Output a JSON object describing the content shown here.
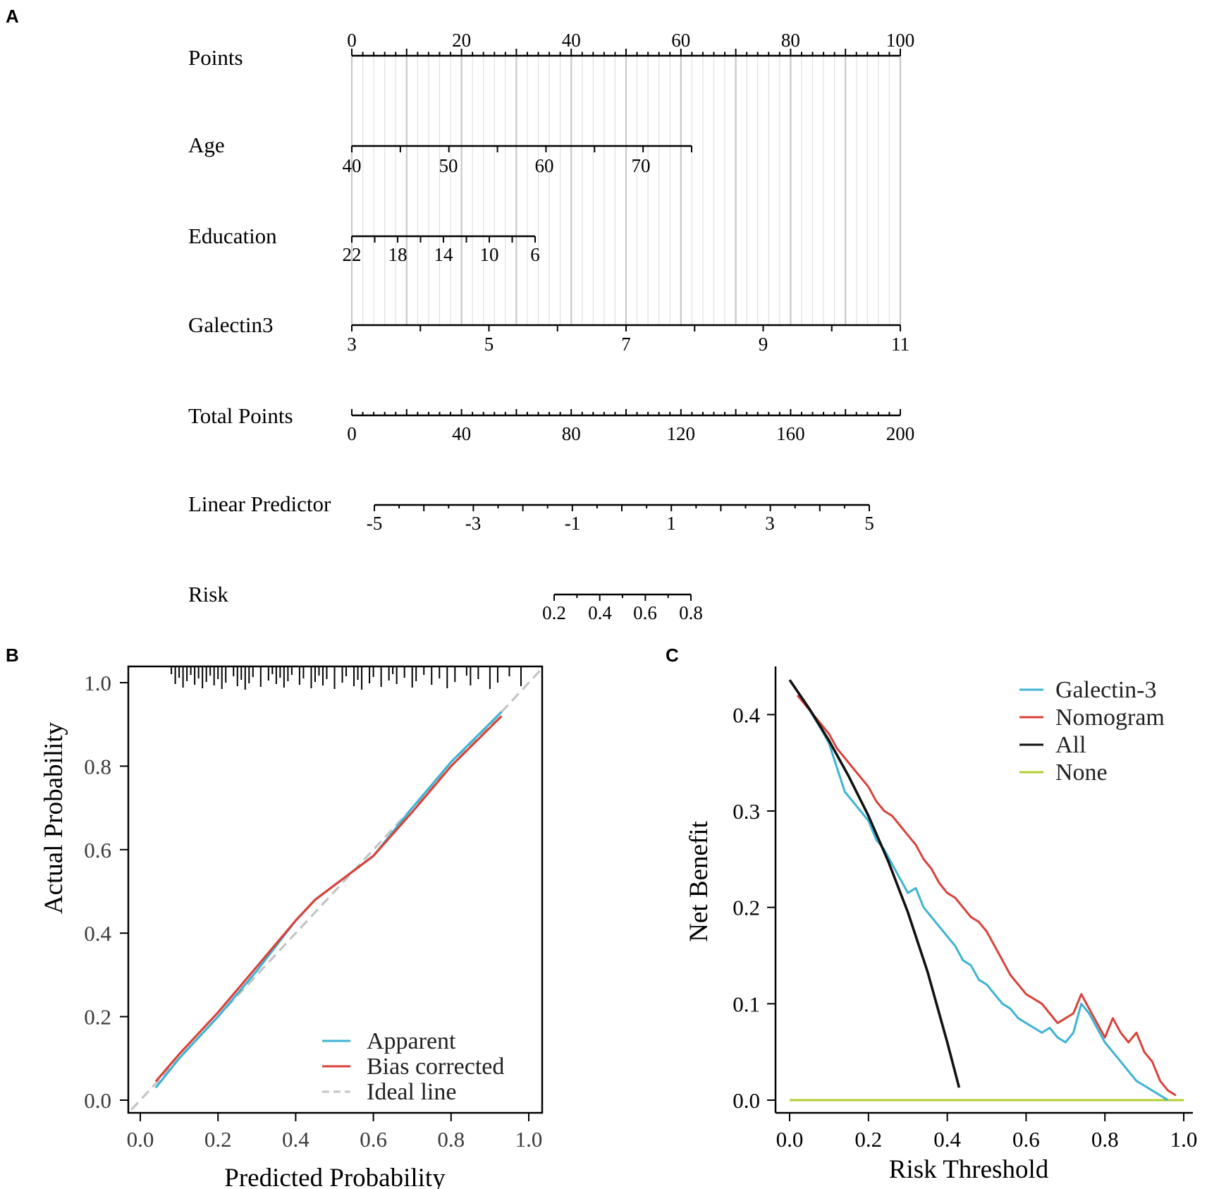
{
  "panels": {
    "a": "A",
    "b": "B",
    "c": "C"
  },
  "nomogram": {
    "points": {
      "label": "Points",
      "ticks": [
        "0",
        "20",
        "40",
        "60",
        "80",
        "100"
      ]
    },
    "age": {
      "label": "Age",
      "ticks": [
        "40",
        "50",
        "60",
        "70"
      ]
    },
    "education": {
      "label": "Education",
      "ticks": [
        "22",
        "18",
        "14",
        "10",
        "6"
      ]
    },
    "galectin3": {
      "label": "Galectin3",
      "ticks": [
        "3",
        "5",
        "7",
        "9",
        "11"
      ]
    },
    "total_points": {
      "label": "Total Points",
      "ticks": [
        "0",
        "40",
        "80",
        "120",
        "160",
        "200"
      ]
    },
    "linear_predictor": {
      "label": "Linear Predictor",
      "ticks": [
        "-5",
        "-3",
        "-1",
        "1",
        "3",
        "5"
      ]
    },
    "risk": {
      "label": "Risk",
      "ticks": [
        "0.2",
        "0.4",
        "0.6",
        "0.8"
      ]
    }
  },
  "chart_data": [
    {
      "panel": "A",
      "type": "nomogram",
      "scales": [
        {
          "name": "Points",
          "ticks": [
            0,
            20,
            40,
            60,
            80,
            100
          ],
          "points_range": [
            0,
            100
          ]
        },
        {
          "name": "Age",
          "ticks": [
            40,
            50,
            60,
            70
          ],
          "value_range": [
            40,
            75.5
          ],
          "points_range": [
            0,
            62
          ]
        },
        {
          "name": "Education",
          "ticks": [
            22,
            18,
            14,
            10,
            6
          ],
          "value_range": [
            22,
            6
          ],
          "points_range": [
            0,
            33.5
          ]
        },
        {
          "name": "Galectin3",
          "ticks": [
            3,
            5,
            7,
            9,
            11
          ],
          "value_range": [
            3,
            11
          ],
          "points_range": [
            0,
            100
          ]
        },
        {
          "name": "Total Points",
          "ticks": [
            0,
            40,
            80,
            120,
            160,
            200
          ],
          "range": [
            0,
            200
          ]
        },
        {
          "name": "Linear Predictor",
          "ticks": [
            -5,
            -3,
            -1,
            1,
            3,
            5
          ],
          "range": [
            -5,
            5
          ]
        },
        {
          "name": "Risk",
          "ticks": [
            0.2,
            0.4,
            0.6,
            0.8
          ],
          "range": [
            0.2,
            0.8
          ]
        }
      ]
    },
    {
      "panel": "B",
      "type": "line",
      "title": "",
      "xlabel": "Predicted Probability",
      "ylabel": "Actual Probability",
      "xlim": [
        0,
        1
      ],
      "ylim": [
        0,
        1
      ],
      "xticks": [
        "0.0",
        "0.2",
        "0.4",
        "0.6",
        "0.8",
        "1.0"
      ],
      "yticks": [
        "0.0",
        "0.2",
        "0.4",
        "0.6",
        "0.8",
        "1.0"
      ],
      "legend_position": "bottom-right",
      "series": [
        {
          "name": "Apparent",
          "color": "#3eb3d1",
          "style": "solid",
          "x": [
            0.04,
            0.1,
            0.2,
            0.3,
            0.4,
            0.45,
            0.5,
            0.55,
            0.6,
            0.7,
            0.8,
            0.93
          ],
          "y": [
            0.03,
            0.1,
            0.2,
            0.31,
            0.43,
            0.48,
            0.515,
            0.55,
            0.585,
            0.7,
            0.81,
            0.93
          ]
        },
        {
          "name": "Bias corrected",
          "color": "#d9413a",
          "style": "solid",
          "x": [
            0.04,
            0.1,
            0.2,
            0.3,
            0.4,
            0.45,
            0.5,
            0.55,
            0.6,
            0.7,
            0.8,
            0.93
          ],
          "y": [
            0.045,
            0.11,
            0.21,
            0.32,
            0.43,
            0.48,
            0.515,
            0.55,
            0.585,
            0.69,
            0.8,
            0.92
          ]
        },
        {
          "name": "Ideal line",
          "color": "#c4c4c4",
          "style": "dashed",
          "x": [
            0,
            1
          ],
          "y": [
            0,
            1
          ]
        }
      ],
      "rug": [
        0.08,
        0.09,
        0.1,
        0.11,
        0.12,
        0.13,
        0.14,
        0.15,
        0.16,
        0.17,
        0.18,
        0.19,
        0.2,
        0.21,
        0.22,
        0.24,
        0.25,
        0.26,
        0.27,
        0.28,
        0.29,
        0.31,
        0.33,
        0.34,
        0.35,
        0.36,
        0.37,
        0.38,
        0.39,
        0.41,
        0.42,
        0.44,
        0.45,
        0.46,
        0.47,
        0.48,
        0.5,
        0.52,
        0.53,
        0.55,
        0.56,
        0.57,
        0.59,
        0.6,
        0.62,
        0.64,
        0.65,
        0.66,
        0.68,
        0.7,
        0.71,
        0.73,
        0.75,
        0.77,
        0.79,
        0.81,
        0.84,
        0.85,
        0.87,
        0.9,
        0.92,
        0.95,
        0.98
      ]
    },
    {
      "panel": "C",
      "type": "line",
      "title": "",
      "xlabel": "Risk Threshold",
      "ylabel": "Net Benefit",
      "xlim": [
        0,
        1
      ],
      "ylim": [
        0,
        0.45
      ],
      "xticks": [
        "0.0",
        "0.2",
        "0.4",
        "0.6",
        "0.8",
        "1.0"
      ],
      "yticks": [
        "0.0",
        "0.1",
        "0.2",
        "0.3",
        "0.4"
      ],
      "legend_position": "top-right",
      "series": [
        {
          "name": "Galectin-3",
          "color": "#3eb3d1",
          "x": [
            0.02,
            0.05,
            0.08,
            0.1,
            0.12,
            0.14,
            0.16,
            0.18,
            0.2,
            0.22,
            0.24,
            0.26,
            0.28,
            0.3,
            0.32,
            0.34,
            0.36,
            0.38,
            0.4,
            0.42,
            0.44,
            0.46,
            0.48,
            0.5,
            0.52,
            0.54,
            0.56,
            0.58,
            0.6,
            0.62,
            0.64,
            0.66,
            0.68,
            0.7,
            0.72,
            0.74,
            0.76,
            0.78,
            0.8,
            0.82,
            0.84,
            0.86,
            0.88,
            0.9,
            0.92,
            0.94,
            0.96
          ],
          "y": [
            0.42,
            0.405,
            0.385,
            0.37,
            0.345,
            0.32,
            0.31,
            0.3,
            0.29,
            0.27,
            0.26,
            0.245,
            0.23,
            0.215,
            0.22,
            0.2,
            0.19,
            0.18,
            0.17,
            0.16,
            0.145,
            0.14,
            0.125,
            0.12,
            0.11,
            0.1,
            0.095,
            0.085,
            0.08,
            0.075,
            0.07,
            0.075,
            0.065,
            0.06,
            0.07,
            0.1,
            0.09,
            0.075,
            0.06,
            0.05,
            0.04,
            0.03,
            0.02,
            0.015,
            0.01,
            0.005,
            0.0
          ]
        },
        {
          "name": "Nomogram",
          "color": "#d9413a",
          "x": [
            0.02,
            0.05,
            0.08,
            0.1,
            0.12,
            0.14,
            0.16,
            0.18,
            0.2,
            0.22,
            0.24,
            0.26,
            0.28,
            0.3,
            0.32,
            0.34,
            0.36,
            0.38,
            0.4,
            0.42,
            0.44,
            0.46,
            0.48,
            0.5,
            0.52,
            0.54,
            0.56,
            0.58,
            0.6,
            0.62,
            0.64,
            0.66,
            0.68,
            0.7,
            0.72,
            0.74,
            0.76,
            0.78,
            0.8,
            0.82,
            0.84,
            0.86,
            0.88,
            0.9,
            0.92,
            0.94,
            0.96,
            0.98
          ],
          "y": [
            0.42,
            0.405,
            0.39,
            0.38,
            0.365,
            0.355,
            0.345,
            0.335,
            0.325,
            0.31,
            0.3,
            0.295,
            0.285,
            0.275,
            0.265,
            0.25,
            0.24,
            0.225,
            0.215,
            0.21,
            0.2,
            0.19,
            0.185,
            0.175,
            0.16,
            0.145,
            0.13,
            0.12,
            0.11,
            0.105,
            0.1,
            0.09,
            0.08,
            0.085,
            0.09,
            0.11,
            0.095,
            0.08,
            0.065,
            0.085,
            0.07,
            0.06,
            0.07,
            0.05,
            0.04,
            0.02,
            0.01,
            0.005
          ]
        },
        {
          "name": "All",
          "color": "#111111",
          "x": [
            0.0,
            0.05,
            0.1,
            0.15,
            0.2,
            0.25,
            0.3,
            0.35,
            0.4,
            0.43
          ],
          "y": [
            0.436,
            0.406,
            0.373,
            0.336,
            0.295,
            0.248,
            0.195,
            0.133,
            0.06,
            0.013
          ]
        },
        {
          "name": "None",
          "color": "#b5cc2e",
          "x": [
            0.0,
            1.0
          ],
          "y": [
            0.0,
            0.0
          ]
        }
      ]
    }
  ]
}
